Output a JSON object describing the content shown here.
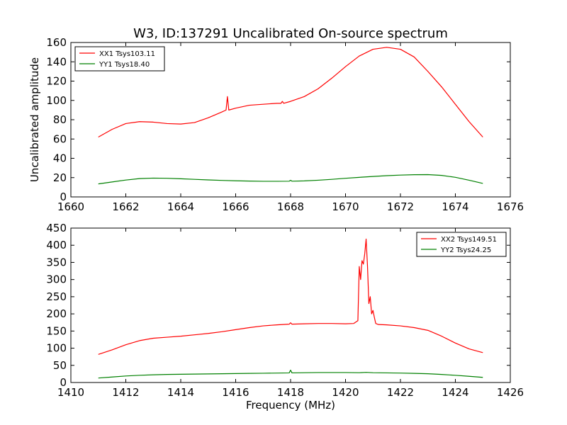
{
  "figure": {
    "title": "W3, ID:137291 Uncalibrated On-source spectrum",
    "background": "#ffffff"
  },
  "chart_data": [
    {
      "type": "line",
      "xlabel": "",
      "ylabel": "Uncalibrated amplitude",
      "xlim": [
        1660,
        1676
      ],
      "ylim": [
        0,
        160
      ],
      "xticks": [
        1660,
        1662,
        1664,
        1666,
        1668,
        1670,
        1672,
        1674,
        1676
      ],
      "yticks": [
        0,
        20,
        40,
        60,
        80,
        100,
        120,
        140,
        160
      ],
      "grid": false,
      "legend": "top-left",
      "series": [
        {
          "name": "XX1 Tsys103.11",
          "color": "#ff0000",
          "x": [
            1661.0,
            1661.5,
            1662.0,
            1662.5,
            1663.0,
            1663.5,
            1664.0,
            1664.5,
            1665.0,
            1665.5,
            1665.65,
            1665.7,
            1665.75,
            1666.0,
            1666.5,
            1667.0,
            1667.5,
            1667.65,
            1667.7,
            1667.75,
            1668.0,
            1668.5,
            1669.0,
            1669.5,
            1670.0,
            1670.5,
            1671.0,
            1671.5,
            1672.0,
            1672.5,
            1673.0,
            1673.5,
            1674.0,
            1674.5,
            1675.0
          ],
          "y": [
            62,
            70,
            76,
            78,
            77.5,
            76,
            75.5,
            77,
            82,
            88,
            90,
            104,
            90,
            92,
            95,
            96,
            97,
            97,
            99,
            97,
            99,
            104,
            112,
            123,
            135,
            146,
            153,
            155,
            153,
            145,
            130,
            114,
            96,
            78,
            62
          ]
        },
        {
          "name": "YY1 Tsys18.40",
          "color": "#008000",
          "x": [
            1661.0,
            1661.5,
            1662.0,
            1662.5,
            1663.0,
            1663.5,
            1664.0,
            1664.5,
            1665.0,
            1665.5,
            1666.0,
            1666.5,
            1667.0,
            1667.5,
            1667.95,
            1668.0,
            1668.05,
            1668.5,
            1669.0,
            1669.5,
            1670.0,
            1670.5,
            1671.0,
            1671.5,
            1672.0,
            1672.5,
            1673.0,
            1673.5,
            1674.0,
            1674.5,
            1675.0
          ],
          "y": [
            13.5,
            15.5,
            17.5,
            19,
            19.5,
            19.3,
            18.8,
            18.2,
            17.6,
            17.1,
            16.7,
            16.4,
            16.2,
            16.2,
            16.3,
            17.2,
            16.3,
            16.6,
            17.3,
            18.2,
            19.3,
            20.3,
            21.2,
            22,
            22.6,
            23,
            23.1,
            22.3,
            20.3,
            17.3,
            14
          ]
        }
      ]
    },
    {
      "type": "line",
      "xlabel": "Frequency (MHz)",
      "ylabel": "",
      "xlim": [
        1410,
        1426
      ],
      "ylim": [
        0,
        450
      ],
      "xticks": [
        1410,
        1412,
        1414,
        1416,
        1418,
        1420,
        1422,
        1424,
        1426
      ],
      "yticks": [
        0,
        50,
        100,
        150,
        200,
        250,
        300,
        350,
        400,
        450
      ],
      "grid": false,
      "legend": "top-right",
      "series": [
        {
          "name": "XX2 Tsys149.51",
          "color": "#ff0000",
          "x": [
            1411.0,
            1411.5,
            1412.0,
            1412.5,
            1413.0,
            1413.5,
            1414.0,
            1414.5,
            1415.0,
            1415.5,
            1416.0,
            1416.5,
            1417.0,
            1417.5,
            1417.95,
            1418.0,
            1418.05,
            1418.5,
            1419.0,
            1419.5,
            1420.0,
            1420.3,
            1420.45,
            1420.5,
            1420.55,
            1420.6,
            1420.65,
            1420.7,
            1420.75,
            1420.8,
            1420.85,
            1420.9,
            1420.95,
            1421.0,
            1421.05,
            1421.1,
            1421.2,
            1421.5,
            1422.0,
            1422.5,
            1423.0,
            1423.5,
            1424.0,
            1424.5,
            1425.0
          ],
          "y": [
            82,
            95,
            110,
            122,
            129,
            132,
            135,
            139,
            143,
            148,
            154,
            160,
            165,
            168,
            170,
            174,
            170,
            171,
            172,
            172,
            171,
            172,
            180,
            338,
            300,
            355,
            345,
            375,
            418,
            340,
            230,
            250,
            200,
            210,
            190,
            172,
            169,
            168,
            165,
            160,
            152,
            135,
            115,
            98,
            87
          ]
        },
        {
          "name": "YY2 Tsys24.25",
          "color": "#008000",
          "x": [
            1411.0,
            1411.5,
            1412.0,
            1412.5,
            1413.0,
            1413.5,
            1414.0,
            1414.5,
            1415.0,
            1415.5,
            1416.0,
            1416.5,
            1417.0,
            1417.5,
            1417.95,
            1418.0,
            1418.05,
            1418.5,
            1419.0,
            1419.5,
            1420.0,
            1420.5,
            1420.75,
            1421.0,
            1421.5,
            1422.0,
            1422.5,
            1423.0,
            1423.5,
            1424.0,
            1424.5,
            1425.0
          ],
          "y": [
            13,
            16,
            19,
            21,
            22.5,
            23.5,
            24,
            24.5,
            25,
            25.5,
            26,
            26.5,
            27,
            27.5,
            28,
            36,
            28,
            28.5,
            29,
            29,
            29,
            28.5,
            29.5,
            28.5,
            28,
            27.5,
            26.5,
            25.5,
            23.5,
            21,
            18,
            15
          ]
        }
      ]
    }
  ]
}
